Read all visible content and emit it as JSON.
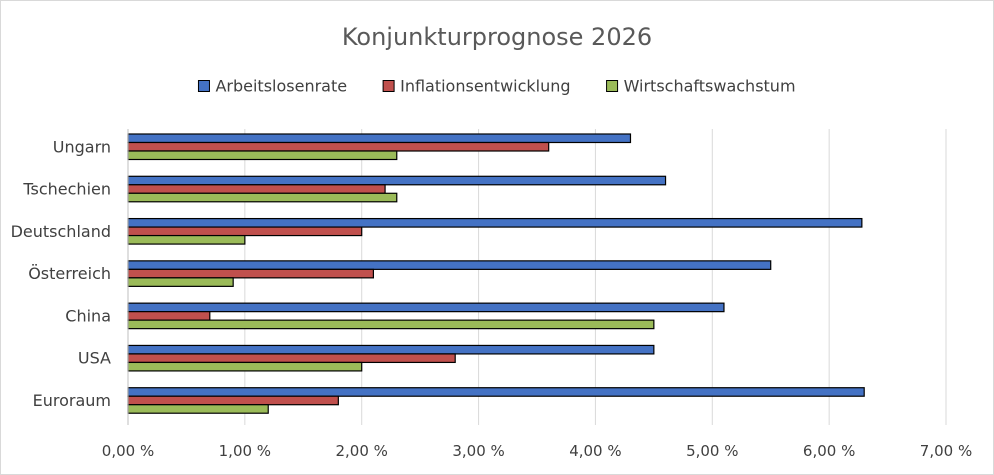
{
  "chart_data": {
    "type": "bar",
    "orientation": "horizontal",
    "title": "Konjunkturprognose  2026",
    "categories": [
      "Ungarn",
      "Tschechien",
      "Deutschland",
      "Österreich",
      "China",
      "USA",
      "Euroraum"
    ],
    "series": [
      {
        "name": "Arbeitslosenrate",
        "color": "#4472c4",
        "values": [
          4.3,
          4.6,
          6.28,
          5.5,
          5.1,
          4.5,
          6.3
        ]
      },
      {
        "name": "Inflationsentwicklung",
        "color": "#c0504d",
        "values": [
          3.6,
          2.2,
          2.0,
          2.1,
          0.7,
          2.8,
          1.8
        ]
      },
      {
        "name": "Wirtschaftswachstum",
        "color": "#9bbb59",
        "values": [
          2.3,
          2.3,
          1.0,
          0.9,
          4.5,
          2.0,
          1.2
        ]
      }
    ],
    "xlim": [
      0,
      7
    ],
    "xticks": [
      0,
      1,
      2,
      3,
      4,
      5,
      6,
      7
    ],
    "xtick_labels": [
      "0,00 %",
      "1,00 %",
      "2,00 %",
      "3,00 %",
      "4,00 %",
      "5,00 %",
      "6,00 %",
      "7,00 %"
    ],
    "grid": true,
    "legend_position": "top"
  }
}
